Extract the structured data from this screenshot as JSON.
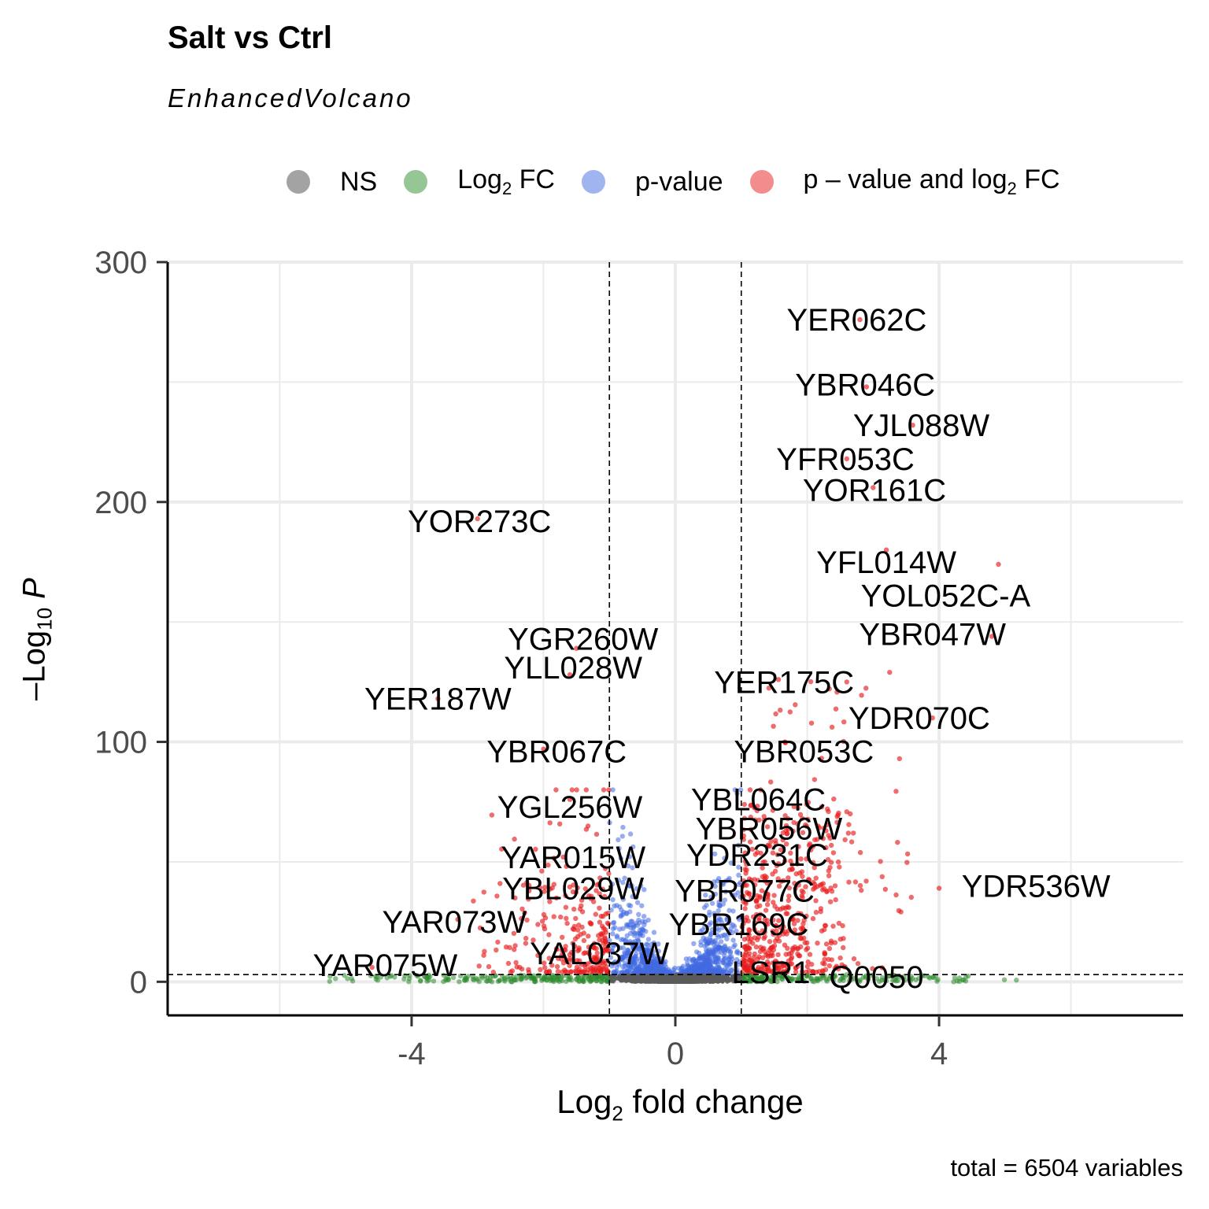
{
  "title": "Salt vs Ctrl",
  "subtitle": "EnhancedVolcano",
  "caption": "total = 6504 variables",
  "legend": [
    {
      "name": "NS",
      "label_main": "NS",
      "label_sub": "",
      "label_tail": "",
      "color": "#999999"
    },
    {
      "name": "Log2 FC",
      "label_main": "Log",
      "label_sub": "2",
      "label_tail": " FC",
      "color": "#2e8b2e"
    },
    {
      "name": "p-value",
      "label_main": "p-value",
      "label_sub": "",
      "label_tail": "",
      "color": "#4169e1"
    },
    {
      "name": "p - value and log2 FC",
      "label_main": "p – value and log",
      "label_sub": "2",
      "label_tail": " FC",
      "color": "#e81c1c"
    }
  ],
  "chart_data": {
    "type": "scatter",
    "title": "Salt vs Ctrl",
    "subtitle": "EnhancedVolcano",
    "xlabel": "Log2 fold change",
    "ylabel": "-Log10 P",
    "xlim": [
      -7.7,
      7.7
    ],
    "ylim": [
      -14,
      300
    ],
    "xticks": [
      -4,
      0,
      4
    ],
    "yticks": [
      0,
      100,
      200,
      300
    ],
    "grid": true,
    "legend_position": "top",
    "thresholds": {
      "fc": 1,
      "pvalue_log10": 3
    },
    "caption": "total = 6504 variables",
    "labeled_points": [
      {
        "label": "YER062C",
        "x": 2.8,
        "y": 276
      },
      {
        "label": "YBR046C",
        "x": 2.9,
        "y": 248
      },
      {
        "label": "YJL088W",
        "x": 3.6,
        "y": 232
      },
      {
        "label": "YFR053C",
        "x": 2.6,
        "y": 218
      },
      {
        "label": "YOR161C",
        "x": 3.0,
        "y": 206
      },
      {
        "label": "YOR273C",
        "x": -3.0,
        "y": 193
      },
      {
        "label": "YFL014W",
        "x": 3.2,
        "y": 180
      },
      {
        "label": "YOL052C-A",
        "x": 4.9,
        "y": 174
      },
      {
        "label": "YBR047W",
        "x": 4.8,
        "y": 144
      },
      {
        "label": "YGR260W",
        "x": -1.5,
        "y": 139
      },
      {
        "label": "YLL028W",
        "x": -1.6,
        "y": 128
      },
      {
        "label": "YER175C",
        "x": 2.6,
        "y": 125
      },
      {
        "label": "YER187W",
        "x": -3.6,
        "y": 118
      },
      {
        "label": "YDR070C",
        "x": 3.9,
        "y": 110
      },
      {
        "label": "YBR067C",
        "x": -2.0,
        "y": 97
      },
      {
        "label": "YBR053C",
        "x": 3.4,
        "y": 93
      },
      {
        "label": "YGL256W",
        "x": -1.6,
        "y": 76
      },
      {
        "label": "YBL064C",
        "x": 1.8,
        "y": 73
      },
      {
        "label": "YBR056W",
        "x": 2.7,
        "y": 62
      },
      {
        "label": "YDR231C",
        "x": 1.6,
        "y": 55
      },
      {
        "label": "YAR015W",
        "x": -1.7,
        "y": 52
      },
      {
        "label": "YDR536W",
        "x": 4.0,
        "y": 39
      },
      {
        "label": "YBL029W",
        "x": -1.2,
        "y": 38
      },
      {
        "label": "YBR077C",
        "x": 1.5,
        "y": 36
      },
      {
        "label": "YAR073W",
        "x": -3.3,
        "y": 26
      },
      {
        "label": "YBR169C",
        "x": 1.4,
        "y": 24
      },
      {
        "label": "YAL037W",
        "x": -1.1,
        "y": 12
      },
      {
        "label": "YAR075W",
        "x": -4.6,
        "y": 6
      },
      {
        "label": "LSR1",
        "x": 1.1,
        "y": 5
      },
      {
        "label": "Q0050",
        "x": 2.6,
        "y": 3
      }
    ]
  }
}
